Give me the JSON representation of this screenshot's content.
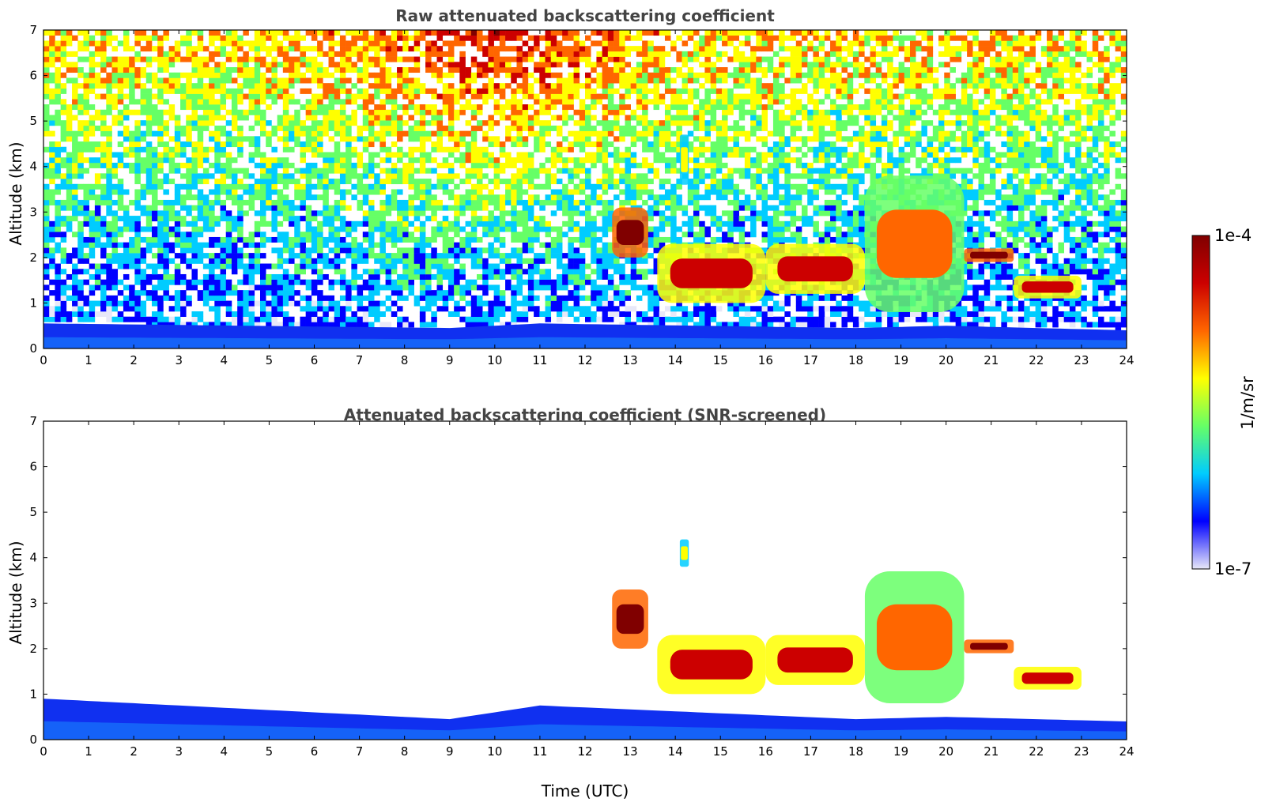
{
  "chart_data": [
    {
      "type": "heatmap",
      "title": "Raw attenuated backscattering coefficient",
      "xlabel": "",
      "ylabel": "Altitude (km)",
      "xlim": [
        0,
        24
      ],
      "ylim": [
        0,
        7
      ],
      "x_ticks": [
        "0",
        "1",
        "2",
        "3",
        "4",
        "5",
        "6",
        "7",
        "8",
        "9",
        "10",
        "11",
        "12",
        "13",
        "14",
        "15",
        "16",
        "17",
        "18",
        "19",
        "20",
        "21",
        "22",
        "23",
        "24"
      ],
      "y_ticks": [
        "0",
        "1",
        "2",
        "3",
        "4",
        "5",
        "6",
        "7"
      ],
      "features": [
        {
          "t": [
            12.6,
            13.4
          ],
          "z": [
            2.0,
            3.1
          ],
          "level": 0.95
        },
        {
          "t": [
            13.6,
            16.0
          ],
          "z": [
            1.0,
            2.3
          ],
          "level": 0.92
        },
        {
          "t": [
            16.0,
            18.2
          ],
          "z": [
            1.2,
            2.3
          ],
          "level": 0.9
        },
        {
          "t": [
            18.2,
            20.4
          ],
          "z": [
            0.8,
            3.8
          ],
          "level": 0.75
        },
        {
          "t": [
            20.4,
            21.5
          ],
          "z": [
            1.9,
            2.2
          ],
          "level": 0.95
        },
        {
          "t": [
            21.5,
            23.0
          ],
          "z": [
            1.1,
            1.6
          ],
          "level": 0.9
        },
        {
          "t": [
            14.1,
            14.3
          ],
          "z": [
            3.6,
            4.7
          ],
          "level": 0.55
        }
      ],
      "boundary_layer_top_km": [
        [
          0,
          0.55
        ],
        [
          9,
          0.45
        ],
        [
          11,
          0.55
        ],
        [
          18,
          0.45
        ],
        [
          20,
          0.5
        ],
        [
          24,
          0.4
        ]
      ]
    },
    {
      "type": "heatmap",
      "title": "Attenuated backscattering coefficient (SNR-screened)",
      "xlabel": "Time (UTC)",
      "ylabel": "Altitude (km)",
      "xlim": [
        0,
        24
      ],
      "ylim": [
        0,
        7
      ],
      "x_ticks": [
        "0",
        "1",
        "2",
        "3",
        "4",
        "5",
        "6",
        "7",
        "8",
        "9",
        "10",
        "11",
        "12",
        "13",
        "14",
        "15",
        "16",
        "17",
        "18",
        "19",
        "20",
        "21",
        "22",
        "23",
        "24"
      ],
      "y_ticks": [
        "0",
        "1",
        "2",
        "3",
        "4",
        "5",
        "6",
        "7"
      ],
      "features": [
        {
          "t": [
            12.6,
            13.4
          ],
          "z": [
            2.0,
            3.3
          ],
          "level": 0.95
        },
        {
          "t": [
            13.6,
            16.0
          ],
          "z": [
            1.0,
            2.3
          ],
          "level": 0.92
        },
        {
          "t": [
            16.0,
            18.2
          ],
          "z": [
            1.2,
            2.3
          ],
          "level": 0.9
        },
        {
          "t": [
            18.2,
            20.4
          ],
          "z": [
            0.8,
            3.7
          ],
          "level": 0.75
        },
        {
          "t": [
            20.4,
            21.5
          ],
          "z": [
            1.9,
            2.2
          ],
          "level": 0.95
        },
        {
          "t": [
            21.5,
            23.0
          ],
          "z": [
            1.1,
            1.6
          ],
          "level": 0.9
        },
        {
          "t": [
            14.1,
            14.3
          ],
          "z": [
            3.8,
            4.4
          ],
          "level": 0.55
        }
      ],
      "boundary_layer_top_km": [
        [
          0,
          0.9
        ],
        [
          9,
          0.45
        ],
        [
          11,
          0.75
        ],
        [
          18,
          0.45
        ],
        [
          20,
          0.5
        ],
        [
          24,
          0.4
        ]
      ]
    }
  ],
  "colorbar": {
    "label": "1/m/sr",
    "max_label": "1e-4",
    "min_label": "1e-7",
    "range": [
      1e-07,
      0.0001
    ],
    "scale": "log",
    "colormap": "jet",
    "colors": [
      "#e8e8f8",
      "#0000ff",
      "#00ccff",
      "#66ff66",
      "#ffff00",
      "#ff6600",
      "#cc0000",
      "#800000"
    ]
  }
}
